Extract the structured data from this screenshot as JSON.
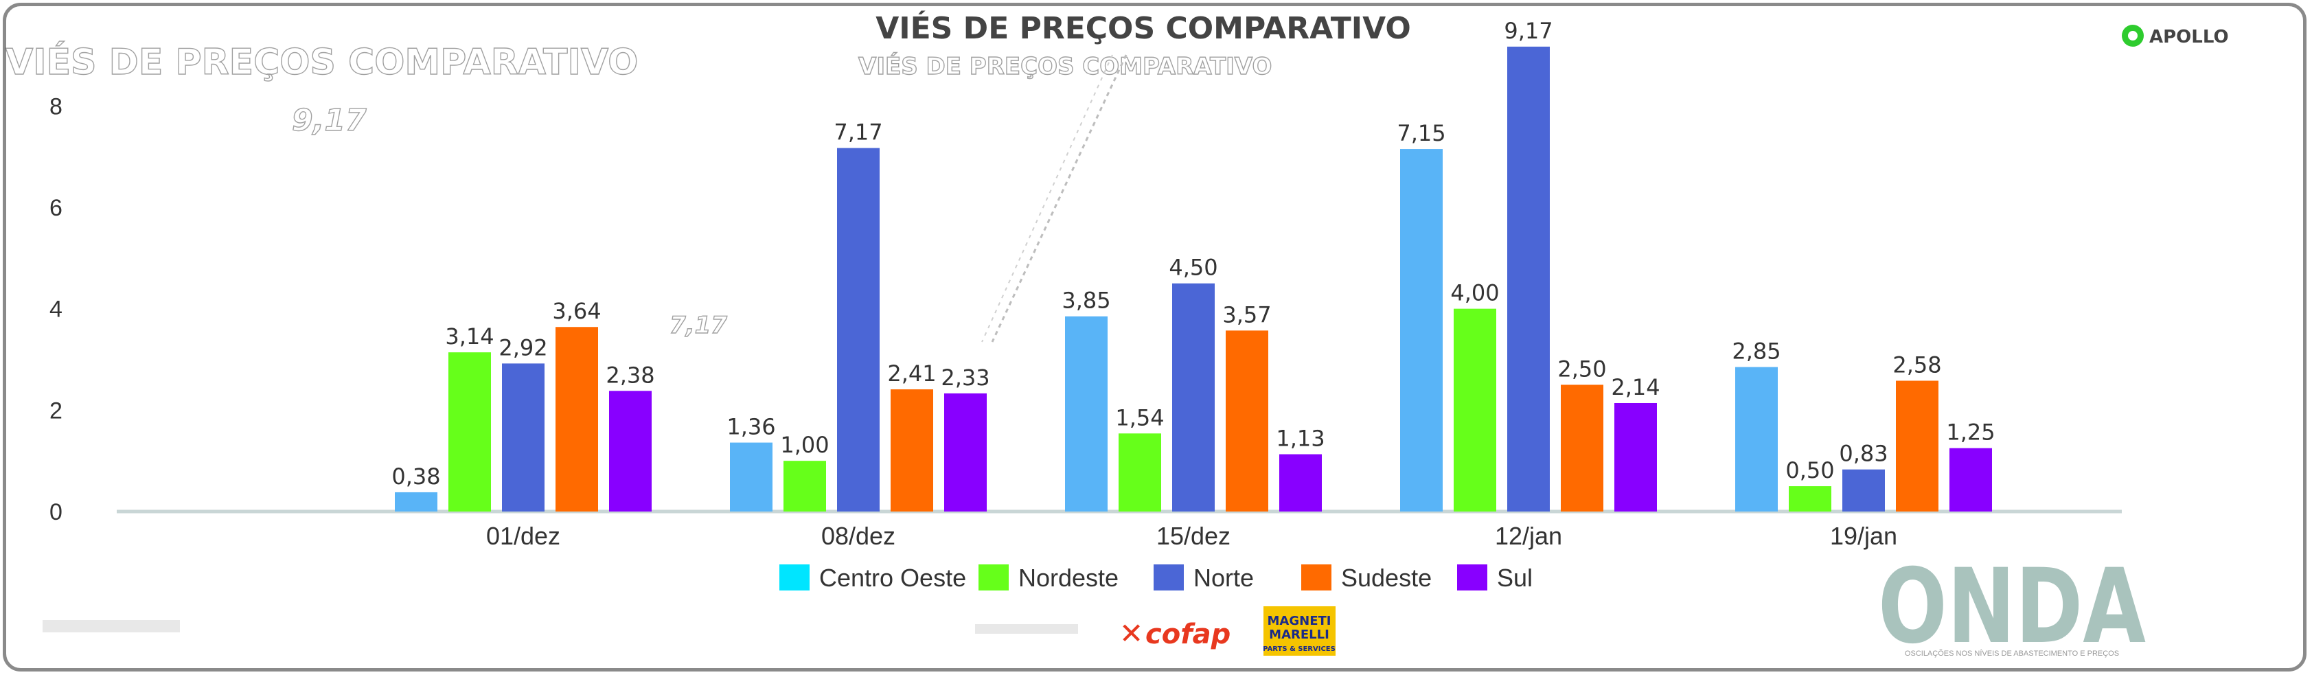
{
  "chart_data": {
    "type": "bar",
    "title": "VIÉS DE PREÇOS COMPARATIVO",
    "xlabel": "",
    "ylabel": "",
    "ylim": [
      0,
      8.6
    ],
    "yticks": [
      0,
      2,
      4,
      6,
      8
    ],
    "grid": false,
    "legend_position": "bottom",
    "categories": [
      "01/dez",
      "08/dez",
      "15/dez",
      "12/jan",
      "19/jan"
    ],
    "series": [
      {
        "name": "Centro Oeste",
        "color": "#59b4f7",
        "legend_color": "#00e5ff",
        "values": [
          0.38,
          1.36,
          3.85,
          7.15,
          2.85
        ],
        "labels": [
          "0,38",
          "1,36",
          "3,85",
          "7,15",
          "2,85"
        ]
      },
      {
        "name": "Nordeste",
        "color": "#66ff1a",
        "values": [
          3.14,
          1.0,
          1.54,
          4.0,
          0.5
        ],
        "labels": [
          "3,14",
          "1,00",
          "1,54",
          "4,00",
          "0,50"
        ]
      },
      {
        "name": "Norte",
        "color": "#4b66d6",
        "values": [
          2.92,
          7.17,
          4.5,
          9.17,
          0.83
        ],
        "labels": [
          "2,92",
          "7,17",
          "4,50",
          "9,17",
          "0,83"
        ]
      },
      {
        "name": "Sudeste",
        "color": "#ff6a00",
        "values": [
          3.64,
          2.41,
          3.57,
          2.5,
          2.58
        ],
        "labels": [
          "3,64",
          "2,41",
          "3,57",
          "2,50",
          "2,58"
        ]
      },
      {
        "name": "Sul",
        "color": "#8800ff",
        "values": [
          2.38,
          2.33,
          1.13,
          2.14,
          1.25
        ],
        "labels": [
          "2,38",
          "2,33",
          "1,13",
          "2,14",
          "1,25"
        ]
      }
    ]
  },
  "logos": {
    "brand": "APOLLO",
    "onda": "ONDA",
    "onda_tagline": "OSCILAÇÕES NOS NÍVEIS DE ABASTECIMENTO E PREÇOS",
    "cofap": "cofap",
    "magneti_1": "MAGNETI",
    "magneti_2": "MARELLI",
    "magneti_3": "PARTS & SERVICES"
  },
  "colors": {
    "frame": "#8a8a8a",
    "axis": "#c9d6d6",
    "onda": "#a9c3bd",
    "cofap": "#e8381f",
    "brand_green": "#2ecc2e",
    "magneti_bg": "#f5c400"
  }
}
